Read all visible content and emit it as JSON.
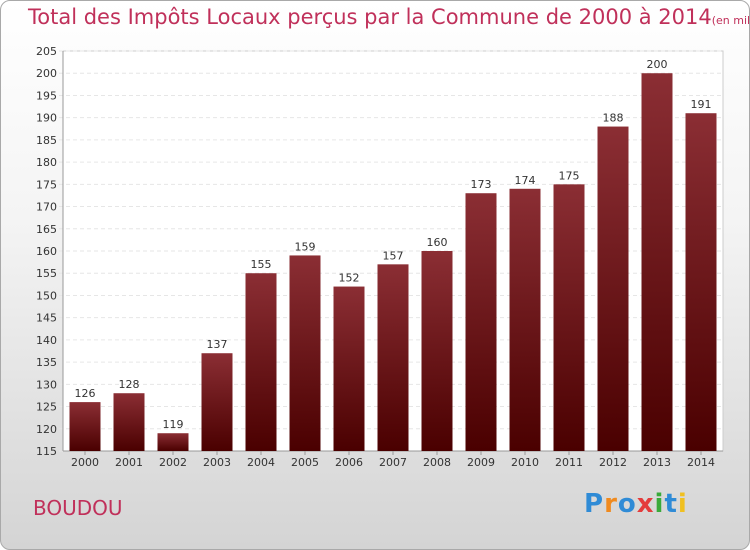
{
  "header": {
    "title": "Total des Impôts Locaux perçus par la Commune de 2000 à 2014",
    "unit": "(en milliers d'€)"
  },
  "footer": {
    "commune": "BOUDOU",
    "logo_text": "Proxiti",
    "logo_letters": [
      {
        "ch": "P",
        "color": "#2f8bd6"
      },
      {
        "ch": "r",
        "color": "#f08a1e"
      },
      {
        "ch": "o",
        "color": "#2f8bd6"
      },
      {
        "ch": "x",
        "color": "#e43c3c"
      },
      {
        "ch": "i",
        "color": "#3aaa3a"
      },
      {
        "ch": "t",
        "color": "#2f8bd6"
      },
      {
        "ch": "i",
        "color": "#f0c020"
      }
    ]
  },
  "colors": {
    "bar_top": "#8b2e34",
    "bar_bottom": "#4a0000",
    "text": "#c0305a"
  },
  "chart_data": {
    "type": "bar",
    "categories": [
      "2000",
      "2001",
      "2002",
      "2003",
      "2004",
      "2005",
      "2006",
      "2007",
      "2008",
      "2009",
      "2010",
      "2011",
      "2012",
      "2013",
      "2014"
    ],
    "values": [
      126,
      128,
      119,
      137,
      155,
      159,
      152,
      157,
      160,
      173,
      174,
      175,
      188,
      200,
      191
    ],
    "ylim": [
      115,
      205
    ],
    "yticks": [
      115,
      120,
      125,
      130,
      135,
      140,
      145,
      150,
      155,
      160,
      165,
      170,
      175,
      180,
      185,
      190,
      195,
      200,
      205
    ],
    "grid": true,
    "data_labels": true
  }
}
